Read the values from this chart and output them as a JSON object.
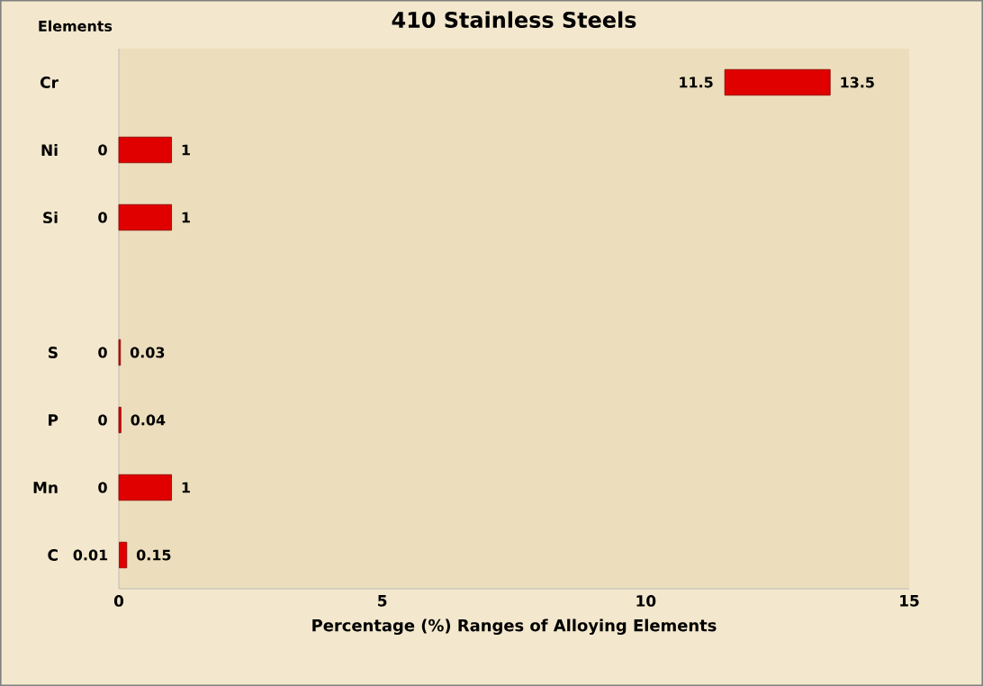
{
  "chart_data": {
    "type": "bar",
    "orientation": "horizontal",
    "title": "410 Stainless Steels",
    "xlabel": "Percentage (%)  Ranges of Alloying Elements",
    "ylabel": "Elements",
    "categories": [
      "Cr",
      "Ni",
      "Si",
      null,
      "S",
      "P",
      "Mn",
      "C"
    ],
    "base": [
      11.5,
      0,
      0,
      null,
      0,
      0,
      0,
      0.01
    ],
    "values": [
      2,
      1,
      1,
      null,
      0.03,
      0.04,
      1,
      0.14
    ],
    "value_labels": [
      "13.5",
      "1",
      "1",
      null,
      "0.03",
      "0.04",
      "1",
      "0.15"
    ],
    "annotations": [
      {
        "text": "11.5",
        "x": 11.5,
        "y": "Cr"
      },
      {
        "text": "0",
        "x": 0,
        "y": "Ni"
      },
      {
        "text": "0",
        "x": 0,
        "y": "Si"
      },
      {
        "text": "0",
        "x": 0,
        "y": "S"
      },
      {
        "text": "0",
        "x": 0,
        "y": "P"
      },
      {
        "text": "0",
        "x": 0,
        "y": "Mn"
      },
      {
        "text": "0.01",
        "x": 0.01,
        "y": "C"
      }
    ],
    "color": "#e00000",
    "xlim": [
      0,
      15
    ],
    "xticks": [
      0,
      5,
      10,
      15
    ],
    "grid": false
  }
}
